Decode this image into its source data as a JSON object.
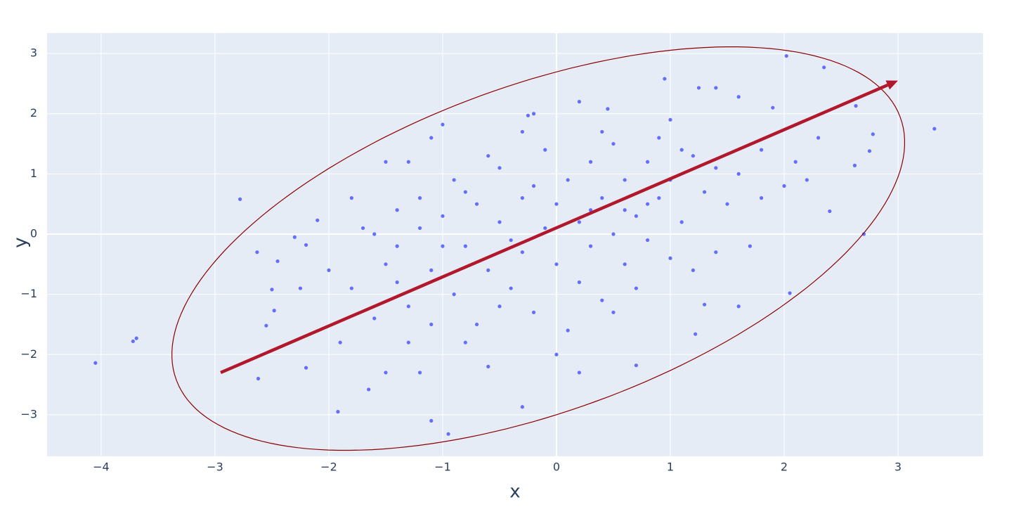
{
  "chart_data": {
    "type": "scatter",
    "xlabel": "x",
    "ylabel": "y",
    "color": "#636efa",
    "x": [
      -4.05,
      -3.72,
      -3.69,
      -2.78,
      -2.63,
      -2.62,
      -2.45,
      -2.5,
      -2.48,
      -2.55,
      -2.2,
      -1.92,
      -2.25,
      -2.2,
      -2.1,
      -2.3,
      3.32,
      2.78,
      2.75,
      2.7,
      2.63,
      2.62,
      2.4,
      2.35,
      2.02,
      2.05,
      1.6,
      1.3,
      1.22,
      0.7,
      -0.3,
      -1.1,
      -0.95,
      -1.65,
      0.95,
      1.25,
      1.4,
      1.6,
      0.45,
      0.2,
      -0.2,
      -0.25,
      -1.0,
      -1.1,
      -1.3,
      -1.5,
      -1.8,
      -1.6,
      -1.5,
      -1.4,
      -1.3,
      -1.2,
      -1.1,
      -1.0,
      -0.9,
      -0.9,
      -0.8,
      -0.7,
      -0.7,
      -0.6,
      -0.5,
      -0.5,
      -0.4,
      -0.3,
      -0.3,
      -0.2,
      -0.1,
      -0.1,
      0,
      0,
      0.1,
      0.1,
      0.2,
      0.2,
      0.3,
      0.3,
      0.4,
      0.4,
      0.5,
      0.5,
      0.6,
      0.6,
      0.7,
      0.7,
      0.8,
      0.8,
      0.9,
      0.9,
      1.0,
      1.0,
      1.1,
      1.1,
      1.2,
      1.3,
      1.4,
      1.4,
      1.5,
      1.6,
      1.7,
      1.8,
      1.8,
      1.9,
      2.0,
      2.1,
      2.2,
      2.3,
      -2.0,
      -1.9,
      -1.8,
      -1.7,
      -1.6,
      -1.5,
      -1.4,
      -1.3,
      -1.2,
      -1.1,
      -1.0,
      -0.8,
      -0.6,
      -0.5,
      -0.4,
      -0.2,
      0,
      0.2,
      0.3,
      0.5,
      0.6,
      0.8,
      1.0,
      1.2,
      0.4,
      -0.3,
      -0.6,
      -0.8,
      -1.2,
      -1.4
    ],
    "y": [
      -2.14,
      -1.78,
      -1.73,
      0.58,
      -0.3,
      -2.4,
      -0.45,
      -0.92,
      -1.27,
      -1.52,
      -2.22,
      -2.95,
      -0.9,
      -0.18,
      0.23,
      -0.05,
      1.75,
      1.66,
      1.38,
      0,
      2.13,
      1.14,
      0.38,
      2.77,
      2.96,
      -0.98,
      -1.2,
      -1.17,
      -1.66,
      -2.18,
      -2.87,
      -3.1,
      -3.32,
      -2.58,
      2.58,
      2.43,
      2.43,
      2.28,
      2.08,
      2.2,
      2.0,
      1.97,
      1.82,
      1.6,
      1.2,
      1.2,
      0.6,
      0,
      -0.5,
      0.4,
      -1.2,
      0.1,
      -0.6,
      0.3,
      -1.0,
      0.9,
      -0.2,
      0.5,
      -1.5,
      -0.6,
      0.2,
      1.1,
      -0.9,
      0.6,
      -0.3,
      -1.3,
      0.1,
      1.4,
      -0.5,
      0.5,
      -1.6,
      0.9,
      0.2,
      -0.8,
      1.2,
      -0.2,
      0.6,
      -1.1,
      0,
      1.5,
      -0.5,
      0.9,
      0.3,
      -0.9,
      1.2,
      -0.1,
      0.6,
      1.6,
      -0.4,
      0.9,
      0.2,
      1.4,
      -0.6,
      0.7,
      1.1,
      -0.3,
      0.5,
      1.0,
      -0.2,
      0.6,
      1.4,
      2.1,
      0.8,
      1.2,
      0.9,
      1.6,
      -0.6,
      -1.8,
      -0.9,
      0.1,
      -1.4,
      -2.3,
      -0.8,
      -1.8,
      -2.3,
      -1.5,
      -0.2,
      -1.8,
      -2.2,
      -1.2,
      -0.1,
      0.8,
      -2.0,
      -2.3,
      0.4,
      -1.3,
      0.4,
      0.5,
      1.9,
      1.3,
      1.7,
      1.7,
      1.3,
      0.7,
      0.6,
      -0.2
    ],
    "arrow": {
      "x": [
        -2.95,
        3.0
      ],
      "y": [
        -2.3,
        2.55
      ],
      "color": "#b2182b"
    },
    "ellipse": {
      "center": [
        -0.16,
        -0.24
      ],
      "radii": [
        4.06,
        2.26
      ],
      "angle": 47.2,
      "color": "#8b0000"
    },
    "xlim": [
      -4.475,
      3.747
    ],
    "ylim": [
      -3.69,
      3.34
    ],
    "xticks": [
      {
        "value": -4,
        "label": "−4"
      },
      {
        "value": -3,
        "label": "−3"
      },
      {
        "value": -2,
        "label": "−2"
      },
      {
        "value": -1,
        "label": "−1"
      },
      0,
      1,
      2,
      3
    ],
    "yticks": [
      {
        "value": -3,
        "label": "−3"
      },
      {
        "value": -2,
        "label": "−2"
      },
      {
        "value": -1,
        "label": "−1"
      },
      0,
      1,
      2,
      3
    ],
    "grid": true
  }
}
